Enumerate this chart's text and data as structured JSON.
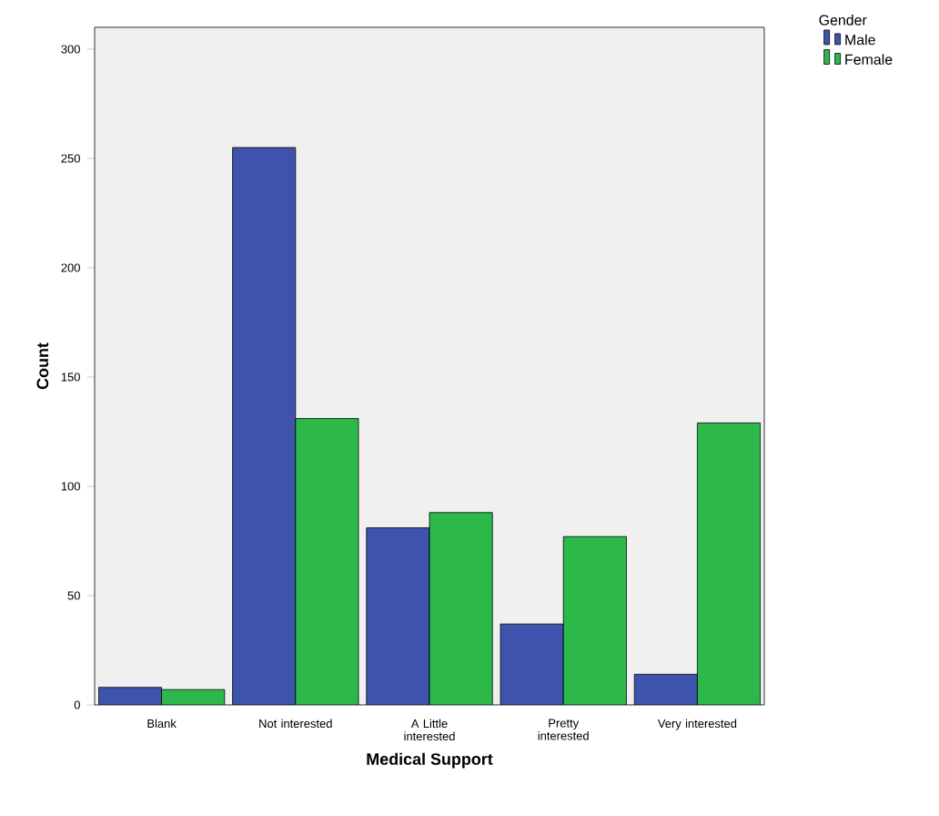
{
  "chart_data": {
    "type": "bar",
    "xlabel": "Medical Support",
    "ylabel": "Count",
    "legend_title": "Gender",
    "categories": [
      "Blank",
      "Not interested",
      "A Little interested",
      "Pretty interested",
      "Very interested"
    ],
    "series": [
      {
        "name": "Male",
        "color": "#3e54ac",
        "values": [
          8,
          255,
          81,
          37,
          14
        ]
      },
      {
        "name": "Female",
        "color": "#2db84a",
        "values": [
          7,
          131,
          88,
          77,
          129
        ]
      }
    ],
    "ylim": [
      0,
      310
    ],
    "yticks": [
      0,
      50,
      100,
      150,
      200,
      250,
      300
    ],
    "grid": false,
    "legend": "top right"
  }
}
